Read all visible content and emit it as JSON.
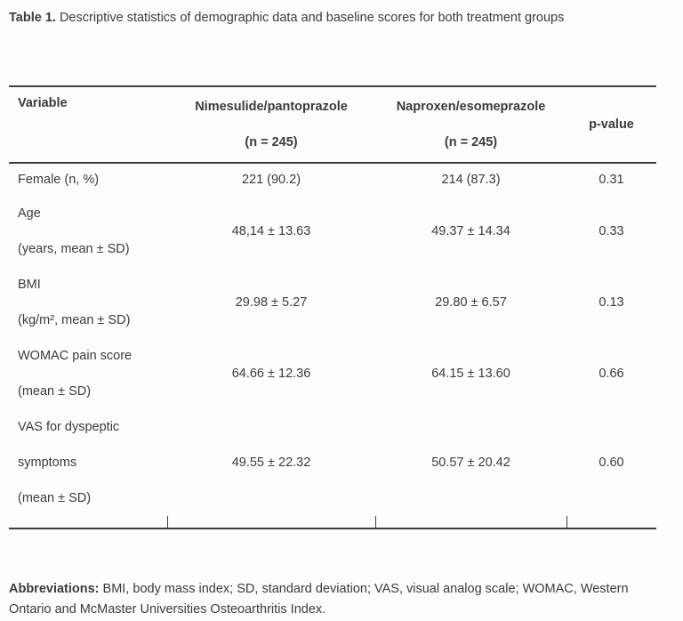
{
  "caption": {
    "label": "Table 1.",
    "text": " Descriptive statistics of demographic data and baseline scores for both treatment groups"
  },
  "table": {
    "headers": {
      "variable": "Variable",
      "group1": "Nimesulide/pantoprazole\n(n = 245)",
      "group2": "Naproxen/esomeprazole\n(n = 245)",
      "pvalue": "p-value"
    },
    "rows": [
      {
        "variable": "Female (n, %)",
        "group1": "221 (90.2)",
        "group2": "214 (87.3)",
        "p": "0.31"
      },
      {
        "variable": "Age\n(years, mean ± SD)",
        "group1": "48,14 ± 13.63",
        "group2": "49.37 ± 14.34",
        "p": "0.33"
      },
      {
        "variable": "BMI\n(kg/m², mean ± SD)",
        "group1": "29.98 ± 5.27",
        "group2": "29.80 ± 6.57",
        "p": "0.13"
      },
      {
        "variable": "WOMAC pain score\n(mean ± SD)",
        "group1": "64.66 ± 12.36",
        "group2": "64.15 ± 13.60",
        "p": "0.66"
      },
      {
        "variable": "VAS for dyspeptic\nsymptoms\n(mean ± SD)",
        "group1": "49.55 ± 22.32",
        "group2": "50.57 ± 20.42",
        "p": "0.60"
      }
    ]
  },
  "footnote": {
    "label": "Abbreviations:",
    "text": " BMI, body mass index; SD, standard deviation; VAS, visual analog scale; WOMAC, Western Ontario and McMaster Universities Osteoarthritis Index."
  }
}
